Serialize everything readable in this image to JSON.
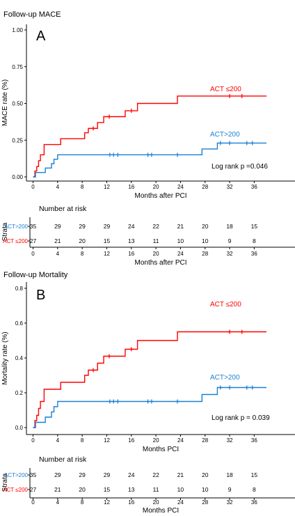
{
  "chart_data": [
    {
      "type": "line",
      "panel_letter": "A",
      "title": "Follow-up MACE",
      "xlabel": "Months after PCI",
      "ylabel": "MACE rate (%)",
      "xlim": [
        0,
        38
      ],
      "ylim": [
        0,
        1
      ],
      "x_ticks": [
        "0",
        "4",
        "8",
        "12",
        "16",
        "20",
        "24",
        "28",
        "32",
        "36"
      ],
      "y_ticks": [
        "0.00",
        "0.25",
        "0.50",
        "0.75",
        "1.00"
      ],
      "annotation": "Log rank p =0.046",
      "series": [
        {
          "name": "ACT ≤200",
          "color": "#ff0000",
          "steps": [
            [
              0,
              0
            ],
            [
              0.3,
              0.04
            ],
            [
              0.6,
              0.07
            ],
            [
              0.9,
              0.11
            ],
            [
              1.2,
              0.15
            ],
            [
              1.8,
              0.22
            ],
            [
              4.5,
              0.26
            ],
            [
              8.4,
              0.3
            ],
            [
              9.0,
              0.33
            ],
            [
              10.5,
              0.37
            ],
            [
              11.5,
              0.41
            ],
            [
              15.0,
              0.45
            ],
            [
              17.0,
              0.5
            ],
            [
              23.5,
              0.55
            ],
            [
              38,
              0.55
            ]
          ],
          "censored": [
            [
              9.8,
              0.33
            ],
            [
              12.4,
              0.41
            ],
            [
              16.0,
              0.45
            ],
            [
              32.0,
              0.55
            ],
            [
              34.0,
              0.55
            ]
          ]
        },
        {
          "name": "ACT>200",
          "color": "#1a7fd4",
          "steps": [
            [
              0,
              0
            ],
            [
              0.4,
              0.03
            ],
            [
              2.0,
              0.06
            ],
            [
              3.0,
              0.09
            ],
            [
              3.4,
              0.12
            ],
            [
              4.0,
              0.15
            ],
            [
              27.5,
              0.19
            ],
            [
              30.0,
              0.23
            ],
            [
              38,
              0.23
            ]
          ],
          "censored": [
            [
              12.5,
              0.15
            ],
            [
              13.1,
              0.15
            ],
            [
              13.8,
              0.15
            ],
            [
              18.7,
              0.15
            ],
            [
              19.3,
              0.15
            ],
            [
              23.5,
              0.15
            ],
            [
              30.5,
              0.23
            ],
            [
              32.0,
              0.23
            ],
            [
              34.8,
              0.23
            ],
            [
              35.7,
              0.23
            ]
          ]
        }
      ],
      "risk_table": {
        "title": "Number at risk",
        "strata_label": "Strata",
        "xlabel": "Months after PCI",
        "times": [
          "0",
          "4",
          "8",
          "12",
          "16",
          "20",
          "24",
          "28",
          "32",
          "36"
        ],
        "rows": [
          {
            "label": "ACT>200",
            "color": "#1a7fd4",
            "counts": [
              "35",
              "29",
              "29",
              "29",
              "24",
              "22",
              "21",
              "20",
              "18",
              "15"
            ]
          },
          {
            "label": "ACT ≤200",
            "color": "#ff0000",
            "counts": [
              "27",
              "21",
              "20",
              "15",
              "13",
              "11",
              "10",
              "10",
              "9",
              "8"
            ]
          }
        ]
      }
    },
    {
      "type": "line",
      "panel_letter": "B",
      "title": "Follow-up Mortality",
      "xlabel": "Months PCI",
      "ylabel": "Mortality rate (%)",
      "xlim": [
        0,
        38
      ],
      "ylim": [
        0,
        0.8
      ],
      "x_ticks": [
        "0",
        "4",
        "8",
        "12",
        "16",
        "20",
        "24",
        "28",
        "32",
        "36"
      ],
      "y_ticks": [
        "0.0",
        "0.2",
        "0.4",
        "0.6",
        "0.8"
      ],
      "annotation": "Log rank p = 0.039",
      "series": [
        {
          "name": "ACT ≤200",
          "color": "#ff0000",
          "steps": [
            [
              0,
              0
            ],
            [
              0.3,
              0.04
            ],
            [
              0.6,
              0.07
            ],
            [
              0.9,
              0.11
            ],
            [
              1.2,
              0.15
            ],
            [
              1.8,
              0.22
            ],
            [
              4.5,
              0.26
            ],
            [
              8.4,
              0.3
            ],
            [
              9.0,
              0.33
            ],
            [
              10.5,
              0.37
            ],
            [
              11.5,
              0.41
            ],
            [
              15.0,
              0.45
            ],
            [
              17.0,
              0.5
            ],
            [
              23.5,
              0.55
            ],
            [
              38,
              0.55
            ]
          ],
          "censored": [
            [
              9.8,
              0.33
            ],
            [
              12.4,
              0.41
            ],
            [
              16.0,
              0.45
            ],
            [
              32.0,
              0.55
            ],
            [
              34.0,
              0.55
            ]
          ]
        },
        {
          "name": "ACT>200",
          "color": "#1a7fd4",
          "steps": [
            [
              0,
              0
            ],
            [
              0.4,
              0.03
            ],
            [
              2.0,
              0.06
            ],
            [
              3.0,
              0.09
            ],
            [
              3.4,
              0.12
            ],
            [
              4.0,
              0.15
            ],
            [
              27.5,
              0.19
            ],
            [
              30.0,
              0.23
            ],
            [
              38,
              0.23
            ]
          ],
          "censored": [
            [
              12.5,
              0.15
            ],
            [
              13.1,
              0.15
            ],
            [
              13.8,
              0.15
            ],
            [
              18.7,
              0.15
            ],
            [
              19.3,
              0.15
            ],
            [
              23.5,
              0.15
            ],
            [
              30.5,
              0.23
            ],
            [
              32.0,
              0.23
            ],
            [
              34.8,
              0.23
            ],
            [
              35.7,
              0.23
            ]
          ]
        }
      ],
      "risk_table": {
        "title": "Number at risk",
        "strata_label": "Strata",
        "xlabel": "Months PCI",
        "times": [
          "0",
          "4",
          "8",
          "12",
          "16",
          "20",
          "24",
          "28",
          "32",
          "36"
        ],
        "rows": [
          {
            "label": "ACT>200",
            "color": "#1a7fd4",
            "counts": [
              "35",
              "29",
              "29",
              "29",
              "24",
              "22",
              "21",
              "20",
              "18",
              "15"
            ]
          },
          {
            "label": "ACT ≤200",
            "color": "#ff0000",
            "counts": [
              "27",
              "21",
              "20",
              "15",
              "13",
              "11",
              "10",
              "10",
              "9",
              "8"
            ]
          }
        ]
      }
    }
  ]
}
